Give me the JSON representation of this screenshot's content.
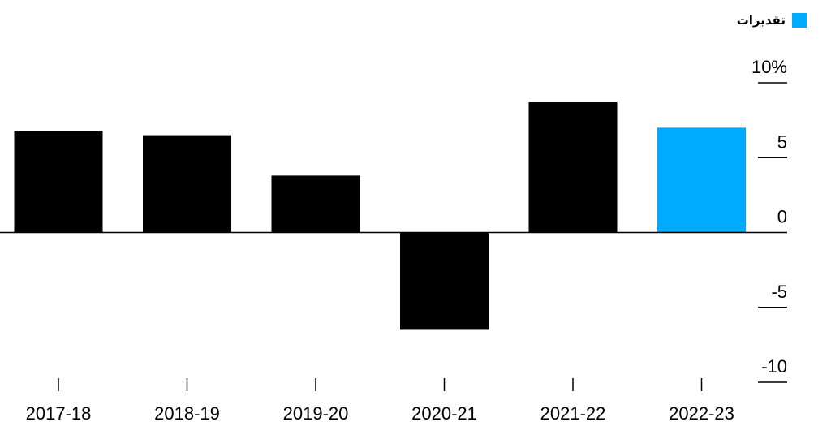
{
  "legend": {
    "label": "تقديرات",
    "color": "#00aaff"
  },
  "chart_data": {
    "type": "bar",
    "categories": [
      "2017-18",
      "2018-19",
      "2019-20",
      "2020-21",
      "2021-22",
      "2022-23"
    ],
    "values": [
      6.8,
      6.5,
      3.8,
      -6.5,
      8.7,
      7.0
    ],
    "estimated": [
      false,
      false,
      false,
      false,
      false,
      true
    ],
    "ylim": [
      -10,
      10
    ],
    "yticks": [
      10,
      5,
      0,
      -5,
      -10
    ],
    "ytick_labels": [
      "10%",
      "5",
      "0",
      "-5",
      "-10"
    ],
    "colors": {
      "actual": "#000000",
      "estimate": "#00aaff"
    }
  }
}
